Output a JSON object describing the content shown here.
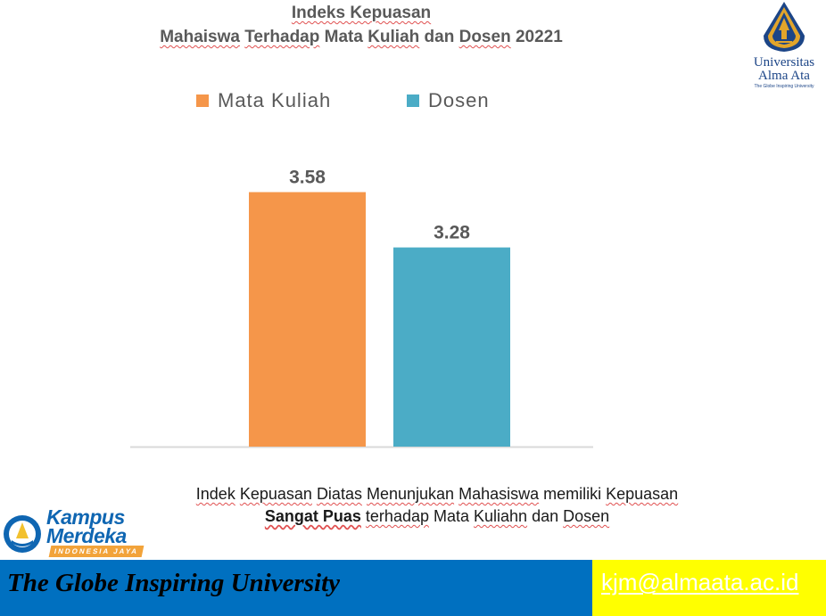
{
  "header": {
    "title_line1": "Indeks Kepuasan",
    "title_line2_parts": [
      "Mahaiswa",
      " ",
      "Terhadap",
      " Mata ",
      "Kuliah",
      " dan ",
      "Dosen",
      " 20221"
    ]
  },
  "university_logo": {
    "name_line1": "Universitas",
    "name_line2": "Alma Ata",
    "tagline": "The Globe Inspiring University",
    "colors": {
      "navy": "#1c4587",
      "gold": "#e2a52b"
    }
  },
  "chart_data": {
    "type": "bar",
    "categories": [
      "Mata Kuliah",
      "Dosen"
    ],
    "values": [
      3.58,
      3.28
    ],
    "data_labels": [
      "3.58",
      "3.28"
    ],
    "colors": [
      "#f5964a",
      "#4bacc6"
    ],
    "legend": {
      "entries": [
        "Mata Kuliah",
        "Dosen"
      ],
      "placement": "top"
    },
    "grid": false,
    "ylim": [
      2.2,
      3.8
    ]
  },
  "caption": {
    "line1_parts": [
      "Indek",
      " ",
      "Kepuasan",
      " ",
      "Diatas",
      " ",
      "Menunjukan",
      " ",
      "Mahasiswa",
      " memiliki ",
      "Kepuasan"
    ],
    "line2_bold": "Sangat Puas",
    "line2_parts": [
      " ",
      "terhadap",
      " Mata ",
      "Kuliahn",
      " dan ",
      "Dosen"
    ]
  },
  "kampus_logo": {
    "word1": "Kampus",
    "word2": "Merdeka",
    "ribbon": "INDONESIA JAYA",
    "colors": {
      "blue": "#0f66b2",
      "orange": "#f2a33a"
    }
  },
  "footer": {
    "tagline": "The Globe Inspiring University",
    "email": "kjm@almaata.ac.id",
    "colors": {
      "left_bg": "#0070c0",
      "right_bg": "#ffff00"
    }
  }
}
